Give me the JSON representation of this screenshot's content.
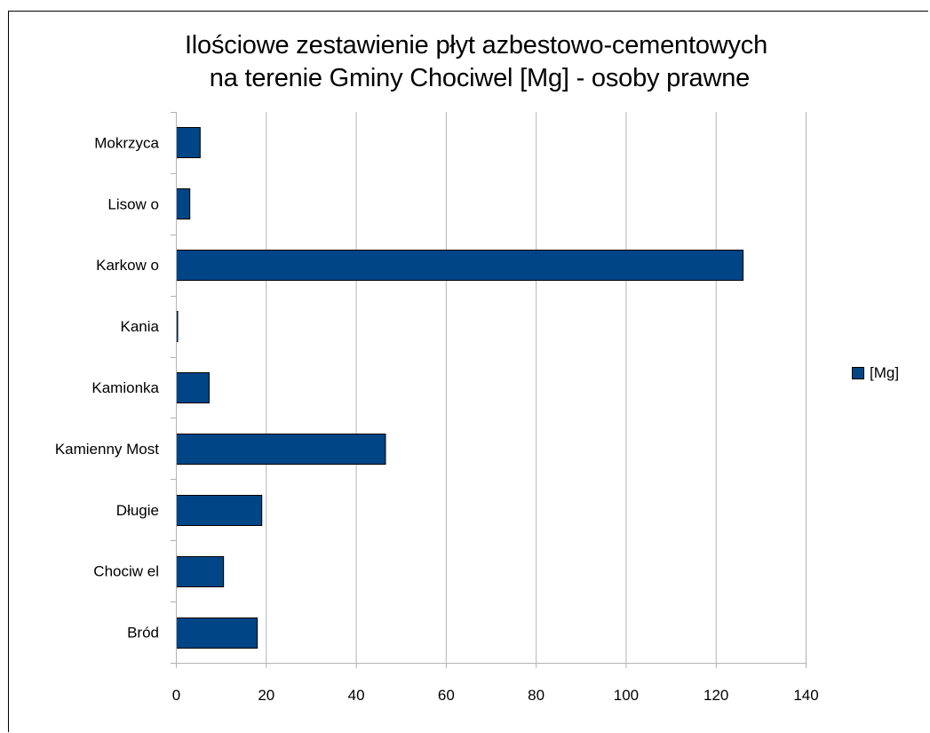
{
  "chart_data": {
    "type": "bar",
    "orientation": "horizontal",
    "title": {
      "line1": "Ilościowe zestawienie płyt azbestowo-cementowych",
      "line2": " na terenie Gminy Chociwel [Mg] - osoby prawne"
    },
    "categories": [
      "Bród",
      "Chociw el",
      "Długie",
      "Kamienny Most",
      "Kamionka",
      "Kania",
      "Karkow o",
      "Lisow o",
      "Mokrzyca"
    ],
    "series": [
      {
        "name": "[Mg]",
        "color": "#004586",
        "values": [
          18,
          10.5,
          19,
          46.5,
          7.3,
          0.3,
          126,
          3,
          5.3
        ]
      }
    ],
    "xlim": [
      0,
      140
    ],
    "xticks": [
      0,
      20,
      40,
      60,
      80,
      100,
      120,
      140
    ],
    "grid": true,
    "legend_position": "right"
  }
}
